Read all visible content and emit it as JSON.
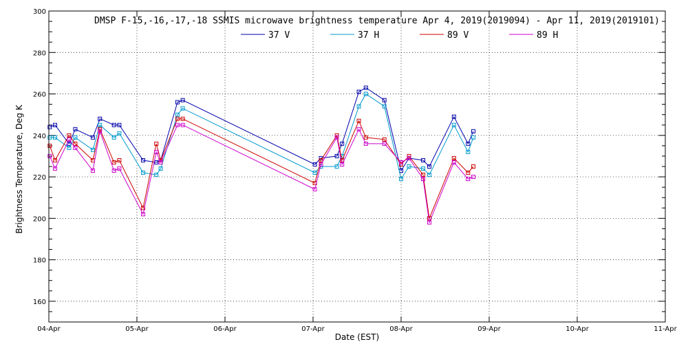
{
  "chart_data": {
    "type": "line",
    "title": "DMSP F-15,-16,-17,-18 SSMIS microwave brightness temperature Apr  4, 2019(2019094) - Apr 11, 2019(2019101)",
    "xlabel": "Date (EST)",
    "ylabel": "Brightness Temperature, Deg K",
    "xlim": [
      0,
      7
    ],
    "ylim": [
      150,
      300
    ],
    "x_tick_labels": [
      "04-Apr",
      "05-Apr",
      "06-Apr",
      "07-Apr",
      "08-Apr",
      "09-Apr",
      "10-Apr",
      "11-Apr"
    ],
    "y_ticks": [
      160,
      180,
      200,
      220,
      240,
      260,
      280,
      300
    ],
    "grid": true,
    "legend_position": "top-center",
    "x": [
      0.01,
      0.07,
      0.23,
      0.3,
      0.5,
      0.58,
      0.74,
      0.8,
      1.07,
      1.22,
      1.27,
      1.46,
      1.52,
      3.02,
      3.09,
      3.27,
      3.33,
      3.52,
      3.6,
      3.81,
      4.0,
      4.09,
      4.25,
      4.32,
      4.6,
      4.76,
      4.82
    ],
    "series": [
      {
        "name": "37 V",
        "color": "#0000aa",
        "values": [
          244,
          245,
          236,
          243,
          239,
          248,
          245,
          245,
          228,
          227,
          228,
          256,
          257,
          226,
          229,
          230,
          236,
          261,
          263,
          257,
          223,
          229,
          228,
          225,
          249,
          236,
          242
        ]
      },
      {
        "name": "37 H",
        "color": "#0099cc",
        "values": [
          239,
          239,
          234,
          239,
          233,
          245,
          239,
          241,
          222,
          221,
          224,
          250,
          253,
          222,
          225,
          225,
          230,
          254,
          260,
          254,
          219,
          225,
          224,
          221,
          245,
          232,
          239
        ]
      },
      {
        "name": "89 V",
        "color": "#cc0000",
        "values": [
          235,
          228,
          240,
          236,
          228,
          243,
          227,
          228,
          205,
          236,
          228,
          248,
          248,
          217,
          228,
          240,
          228,
          247,
          239,
          238,
          226,
          230,
          221,
          200,
          229,
          222,
          225
        ]
      },
      {
        "name": "89 H",
        "color": "#cc00cc",
        "values": [
          230,
          224,
          238,
          234,
          223,
          242,
          223,
          224,
          202,
          232,
          227,
          245,
          245,
          214,
          226,
          239,
          226,
          243,
          236,
          236,
          227,
          229,
          219,
          198,
          227,
          219,
          220
        ]
      }
    ]
  }
}
